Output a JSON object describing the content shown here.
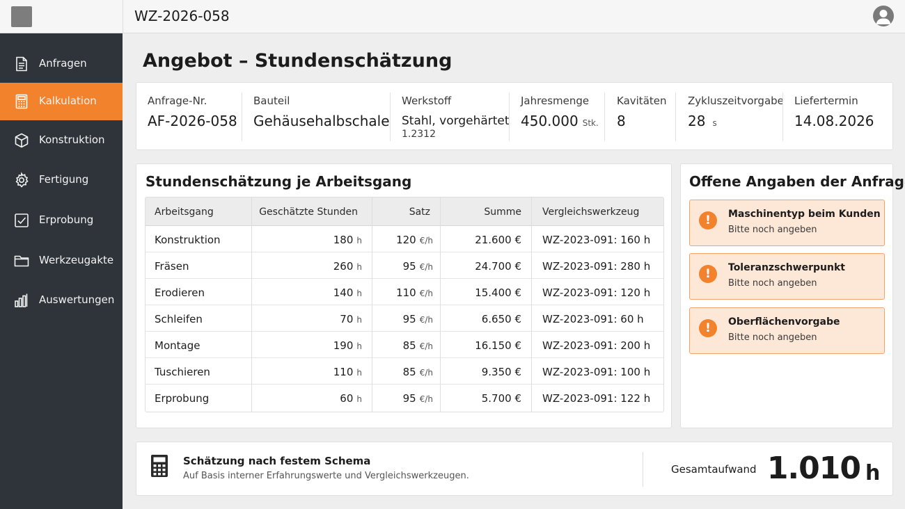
{
  "header": {
    "title": "WZ-2026-058"
  },
  "sidebar": {
    "items": [
      {
        "label": "Anfragen",
        "icon": "document-icon",
        "active": false
      },
      {
        "label": "Kalkulation",
        "icon": "calculator-icon",
        "active": true
      },
      {
        "label": "Konstruktion",
        "icon": "cube-icon",
        "active": false
      },
      {
        "label": "Fertigung",
        "icon": "gear-icon",
        "active": false
      },
      {
        "label": "Erprobung",
        "icon": "checkbox-icon",
        "active": false
      },
      {
        "label": "Werkzeugakte",
        "icon": "folder-icon",
        "active": false
      },
      {
        "label": "Auswertungen",
        "icon": "bar-chart-icon",
        "active": false
      }
    ]
  },
  "page": {
    "title": "Angebot – Stundenschätzung"
  },
  "info": {
    "anfrage": {
      "label": "Anfrage-Nr.",
      "value": "AF-2026-058"
    },
    "bauteil": {
      "label": "Bauteil",
      "value": "Gehäusehalbschale"
    },
    "werkstoff": {
      "label": "Werkstoff",
      "value": "Stahl, vorgehärtet",
      "sub": "1.2312"
    },
    "jahresmenge": {
      "label": "Jahresmenge",
      "value": "450.000",
      "unit": "Stk."
    },
    "kavitaeten": {
      "label": "Kavitäten",
      "value": "8"
    },
    "zykluszeit": {
      "label": "Zykluszeitvorgabe",
      "value": "28",
      "unit": "s"
    },
    "liefertermin": {
      "label": "Liefertermin",
      "value": "14.08.2026"
    }
  },
  "hours_table": {
    "title": "Stundenschätzung je Arbeitsgang",
    "columns": [
      "Arbeitsgang",
      "Geschätzte Stunden",
      "Satz",
      "Summe",
      "Vergleichswerkzeug"
    ],
    "hour_unit": "h",
    "rate_unit": "€/h",
    "rows": [
      {
        "arbeitsgang": "Konstruktion",
        "stunden": "180",
        "satz": "120",
        "summe": "21.600 €",
        "vergleich": "WZ-2023-091: 160 h"
      },
      {
        "arbeitsgang": "Fräsen",
        "stunden": "260",
        "satz": "95",
        "summe": "24.700 €",
        "vergleich": "WZ-2023-091: 280 h"
      },
      {
        "arbeitsgang": "Erodieren",
        "stunden": "140",
        "satz": "110",
        "summe": "15.400 €",
        "vergleich": "WZ-2023-091: 120 h"
      },
      {
        "arbeitsgang": "Schleifen",
        "stunden": "70",
        "satz": "95",
        "summe": "6.650 €",
        "vergleich": "WZ-2023-091: 60 h"
      },
      {
        "arbeitsgang": "Montage",
        "stunden": "190",
        "satz": "85",
        "summe": "16.150 €",
        "vergleich": "WZ-2023-091: 200 h"
      },
      {
        "arbeitsgang": "Tuschieren",
        "stunden": "110",
        "satz": "85",
        "summe": "9.350 €",
        "vergleich": "WZ-2023-091: 100 h"
      },
      {
        "arbeitsgang": "Erprobung",
        "stunden": "60",
        "satz": "95",
        "summe": "5.700 €",
        "vergleich": "WZ-2023-091: 122 h"
      }
    ]
  },
  "open_items": {
    "title": "Offene Angaben der Anfrage",
    "items": [
      {
        "title": "Maschinentyp beim Kunden",
        "sub": "Bitte noch angeben"
      },
      {
        "title": "Toleranzschwerpunkt",
        "sub": "Bitte noch angeben"
      },
      {
        "title": "Oberflächenvorgabe",
        "sub": "Bitte noch angeben"
      }
    ],
    "icon_glyph": "!"
  },
  "footer": {
    "title": "Schätzung nach festem Schema",
    "sub": "Auf Basis interner Erfahrungswerte und Vergleichswerkzeugen.",
    "total_label": "Gesamtaufwand",
    "total_value": "1.010",
    "total_unit": "h"
  },
  "colors": {
    "accent": "#f2822c",
    "sidebar_bg": "#2f343a",
    "alert_bg": "#fde7d7",
    "alert_border": "#f0a56e"
  }
}
